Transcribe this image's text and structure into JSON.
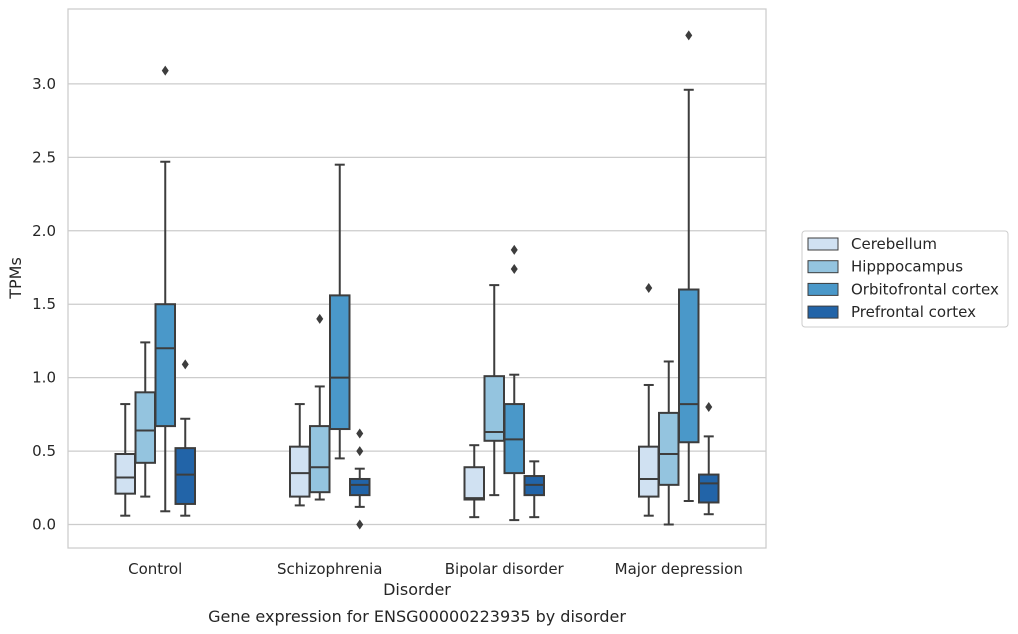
{
  "chart_data": {
    "type": "boxplot",
    "xlabel": "Disorder",
    "ylabel": "TPMs",
    "caption": "Gene expression for ENSG00000223935 by disorder",
    "ylim": [
      -0.16,
      3.51
    ],
    "yticks": [
      "0.0",
      "0.5",
      "1.0",
      "1.5",
      "2.0",
      "2.5",
      "3.0"
    ],
    "grid": "horizontal",
    "legend_position": "right",
    "categories": [
      "Control",
      "Schizophrenia",
      "Bipolar disorder",
      "Major depression"
    ],
    "series": [
      {
        "name": "Cerebellum",
        "color": "#d0e1f2",
        "boxes": [
          {
            "whislo": 0.06,
            "q1": 0.21,
            "med": 0.32,
            "q3": 0.48,
            "whishi": 0.82,
            "fliers": []
          },
          {
            "whislo": 0.13,
            "q1": 0.19,
            "med": 0.35,
            "q3": 0.53,
            "whishi": 0.82,
            "fliers": []
          },
          {
            "whislo": 0.05,
            "q1": 0.17,
            "med": 0.18,
            "q3": 0.39,
            "whishi": 0.54,
            "fliers": []
          },
          {
            "whislo": 0.06,
            "q1": 0.19,
            "med": 0.31,
            "q3": 0.53,
            "whishi": 0.95,
            "fliers": [
              1.61
            ]
          }
        ]
      },
      {
        "name": "Hipppocampus",
        "color": "#94c4df",
        "boxes": [
          {
            "whislo": 0.19,
            "q1": 0.42,
            "med": 0.64,
            "q3": 0.9,
            "whishi": 1.24,
            "fliers": []
          },
          {
            "whislo": 0.17,
            "q1": 0.22,
            "med": 0.39,
            "q3": 0.67,
            "whishi": 0.94,
            "fliers": [
              1.4
            ]
          },
          {
            "whislo": 0.2,
            "q1": 0.57,
            "med": 0.63,
            "q3": 1.01,
            "whishi": 1.63,
            "fliers": []
          },
          {
            "whislo": 0.0,
            "q1": 0.27,
            "med": 0.48,
            "q3": 0.76,
            "whishi": 1.11,
            "fliers": []
          }
        ]
      },
      {
        "name": "Orbitofrontal cortex",
        "color": "#4a98c9",
        "boxes": [
          {
            "whislo": 0.09,
            "q1": 0.67,
            "med": 1.2,
            "q3": 1.5,
            "whishi": 2.47,
            "fliers": [
              3.09
            ]
          },
          {
            "whislo": 0.45,
            "q1": 0.65,
            "med": 1.0,
            "q3": 1.56,
            "whishi": 2.45,
            "fliers": []
          },
          {
            "whislo": 0.03,
            "q1": 0.35,
            "med": 0.58,
            "q3": 0.82,
            "whishi": 1.02,
            "fliers": [
              1.74,
              1.87
            ]
          },
          {
            "whislo": 0.16,
            "q1": 0.56,
            "med": 0.82,
            "q3": 1.6,
            "whishi": 2.96,
            "fliers": [
              3.33
            ]
          }
        ]
      },
      {
        "name": "Prefrontal cortex",
        "color": "#2264a8",
        "boxes": [
          {
            "whislo": 0.06,
            "q1": 0.14,
            "med": 0.34,
            "q3": 0.52,
            "whishi": 0.72,
            "fliers": [
              1.09
            ]
          },
          {
            "whislo": 0.12,
            "q1": 0.2,
            "med": 0.27,
            "q3": 0.31,
            "whishi": 0.38,
            "fliers": [
              0.0,
              0.5,
              0.62
            ]
          },
          {
            "whislo": 0.05,
            "q1": 0.2,
            "med": 0.27,
            "q3": 0.33,
            "whishi": 0.43,
            "fliers": []
          },
          {
            "whislo": 0.07,
            "q1": 0.15,
            "med": 0.28,
            "q3": 0.34,
            "whishi": 0.6,
            "fliers": [
              0.8
            ]
          }
        ]
      }
    ]
  }
}
